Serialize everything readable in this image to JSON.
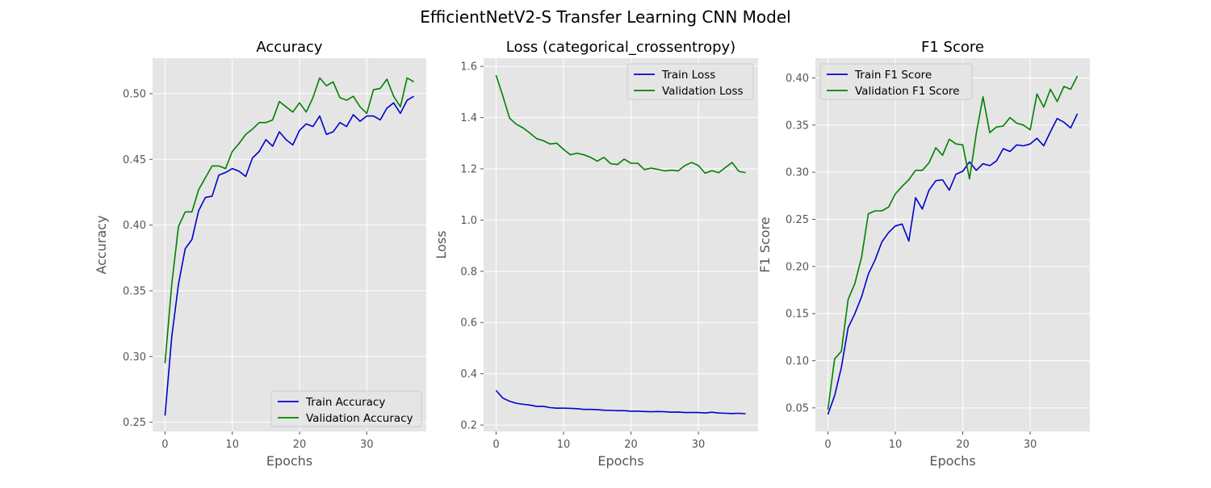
{
  "figure": {
    "suptitle": "EfficientNetV2-S Transfer Learning CNN Model"
  },
  "chart_data": [
    {
      "type": "line",
      "title": "Accuracy",
      "xlabel": "Epochs",
      "ylabel": "Accuracy",
      "xlim": [
        -1.85,
        38.85
      ],
      "ylim": [
        0.243,
        0.527
      ],
      "xticks": [
        0,
        10,
        20,
        30
      ],
      "yticks": [
        0.25,
        0.3,
        0.35,
        0.4,
        0.45,
        0.5
      ],
      "yticks_label": [
        "0.25",
        "0.30",
        "0.35",
        "0.40",
        "0.45",
        "0.50"
      ],
      "grid": true,
      "legend": "lower-right",
      "series": [
        {
          "name": "Train Accuracy",
          "color": "#0000cc",
          "x": [
            0,
            1,
            2,
            3,
            4,
            5,
            6,
            7,
            8,
            9,
            10,
            11,
            12,
            13,
            14,
            15,
            16,
            17,
            18,
            19,
            20,
            21,
            22,
            23,
            24,
            25,
            26,
            27,
            28,
            29,
            30,
            31,
            32,
            33,
            34,
            35,
            36,
            37
          ],
          "values": [
            0.255,
            0.315,
            0.355,
            0.382,
            0.389,
            0.411,
            0.421,
            0.422,
            0.438,
            0.44,
            0.443,
            0.441,
            0.437,
            0.451,
            0.456,
            0.465,
            0.46,
            0.471,
            0.465,
            0.461,
            0.472,
            0.477,
            0.475,
            0.483,
            0.469,
            0.471,
            0.478,
            0.475,
            0.484,
            0.479,
            0.483,
            0.483,
            0.48,
            0.489,
            0.493,
            0.485,
            0.495,
            0.498
          ]
        },
        {
          "name": "Validation Accuracy",
          "color": "#008000",
          "x": [
            0,
            1,
            2,
            3,
            4,
            5,
            6,
            7,
            8,
            9,
            10,
            11,
            12,
            13,
            14,
            15,
            16,
            17,
            18,
            19,
            20,
            21,
            22,
            23,
            24,
            25,
            26,
            27,
            28,
            29,
            30,
            31,
            32,
            33,
            34,
            35,
            36,
            37
          ],
          "values": [
            0.295,
            0.355,
            0.399,
            0.41,
            0.41,
            0.427,
            0.436,
            0.445,
            0.445,
            0.443,
            0.456,
            0.462,
            0.469,
            0.473,
            0.478,
            0.478,
            0.48,
            0.494,
            0.49,
            0.486,
            0.493,
            0.486,
            0.497,
            0.512,
            0.506,
            0.509,
            0.497,
            0.495,
            0.498,
            0.49,
            0.485,
            0.503,
            0.504,
            0.511,
            0.498,
            0.49,
            0.512,
            0.509
          ]
        }
      ]
    },
    {
      "type": "line",
      "title": "Loss (categorical_crossentropy)",
      "xlabel": "Epochs",
      "ylabel": "Loss",
      "xlim": [
        -1.85,
        38.85
      ],
      "ylim": [
        0.175,
        1.632
      ],
      "xticks": [
        0,
        10,
        20,
        30
      ],
      "yticks": [
        0.2,
        0.4,
        0.6,
        0.8,
        1.0,
        1.2,
        1.4,
        1.6
      ],
      "yticks_label": [
        "0.2",
        "0.4",
        "0.6",
        "0.8",
        "1.0",
        "1.2",
        "1.4",
        "1.6"
      ],
      "grid": true,
      "legend": "upper-right",
      "series": [
        {
          "name": "Train Loss",
          "color": "#0000cc",
          "x": [
            0,
            1,
            2,
            3,
            4,
            5,
            6,
            7,
            8,
            9,
            10,
            11,
            12,
            13,
            14,
            15,
            16,
            17,
            18,
            19,
            20,
            21,
            22,
            23,
            24,
            25,
            26,
            27,
            28,
            29,
            30,
            31,
            32,
            33,
            34,
            35,
            36,
            37
          ],
          "values": [
            0.335,
            0.305,
            0.293,
            0.285,
            0.281,
            0.278,
            0.273,
            0.273,
            0.268,
            0.266,
            0.266,
            0.265,
            0.264,
            0.261,
            0.261,
            0.26,
            0.258,
            0.257,
            0.256,
            0.256,
            0.254,
            0.254,
            0.253,
            0.252,
            0.253,
            0.252,
            0.25,
            0.251,
            0.249,
            0.249,
            0.249,
            0.247,
            0.25,
            0.247,
            0.246,
            0.245,
            0.246,
            0.244
          ]
        },
        {
          "name": "Validation Loss",
          "color": "#008000",
          "x": [
            0,
            1,
            2,
            3,
            4,
            5,
            6,
            7,
            8,
            9,
            10,
            11,
            12,
            13,
            14,
            15,
            16,
            17,
            18,
            19,
            20,
            21,
            22,
            23,
            24,
            25,
            26,
            27,
            28,
            29,
            30,
            31,
            32,
            33,
            34,
            35,
            36,
            37
          ],
          "values": [
            1.565,
            1.485,
            1.398,
            1.374,
            1.36,
            1.34,
            1.318,
            1.31,
            1.297,
            1.3,
            1.276,
            1.255,
            1.261,
            1.255,
            1.245,
            1.23,
            1.245,
            1.22,
            1.217,
            1.238,
            1.222,
            1.222,
            1.197,
            1.203,
            1.198,
            1.192,
            1.195,
            1.192,
            1.213,
            1.225,
            1.213,
            1.183,
            1.193,
            1.185,
            1.205,
            1.225,
            1.19,
            1.185
          ]
        }
      ]
    },
    {
      "type": "line",
      "title": "F1 Score",
      "xlabel": "Epochs",
      "ylabel": "F1 Score",
      "xlim": [
        -1.85,
        38.85
      ],
      "ylim": [
        0.025,
        0.421
      ],
      "xticks": [
        0,
        10,
        20,
        30
      ],
      "yticks": [
        0.05,
        0.1,
        0.15,
        0.2,
        0.25,
        0.3,
        0.35,
        0.4
      ],
      "yticks_label": [
        "0.05",
        "0.10",
        "0.15",
        "0.20",
        "0.25",
        "0.30",
        "0.35",
        "0.40"
      ],
      "grid": true,
      "legend": "upper-left",
      "series": [
        {
          "name": "Train F1 Score",
          "color": "#0000cc",
          "x": [
            0,
            1,
            2,
            3,
            4,
            5,
            6,
            7,
            8,
            9,
            10,
            11,
            12,
            13,
            14,
            15,
            16,
            17,
            18,
            19,
            20,
            21,
            22,
            23,
            24,
            25,
            26,
            27,
            28,
            29,
            30,
            31,
            32,
            33,
            34,
            35,
            36,
            37
          ],
          "values": [
            0.043,
            0.063,
            0.093,
            0.135,
            0.15,
            0.168,
            0.192,
            0.207,
            0.226,
            0.236,
            0.243,
            0.245,
            0.227,
            0.273,
            0.261,
            0.281,
            0.291,
            0.292,
            0.281,
            0.298,
            0.301,
            0.311,
            0.302,
            0.309,
            0.307,
            0.312,
            0.325,
            0.322,
            0.329,
            0.328,
            0.33,
            0.336,
            0.328,
            0.343,
            0.357,
            0.353,
            0.347,
            0.362
          ]
        },
        {
          "name": "Validation F1 Score",
          "color": "#008000",
          "x": [
            0,
            1,
            2,
            3,
            4,
            5,
            6,
            7,
            8,
            9,
            10,
            11,
            12,
            13,
            14,
            15,
            16,
            17,
            18,
            19,
            20,
            21,
            22,
            23,
            24,
            25,
            26,
            27,
            28,
            29,
            30,
            31,
            32,
            33,
            34,
            35,
            36,
            37
          ],
          "values": [
            0.048,
            0.102,
            0.11,
            0.165,
            0.182,
            0.21,
            0.256,
            0.259,
            0.259,
            0.263,
            0.277,
            0.285,
            0.292,
            0.302,
            0.302,
            0.31,
            0.326,
            0.318,
            0.335,
            0.33,
            0.329,
            0.293,
            0.341,
            0.38,
            0.342,
            0.348,
            0.349,
            0.358,
            0.352,
            0.35,
            0.345,
            0.383,
            0.369,
            0.388,
            0.375,
            0.391,
            0.388,
            0.402
          ]
        }
      ]
    }
  ]
}
